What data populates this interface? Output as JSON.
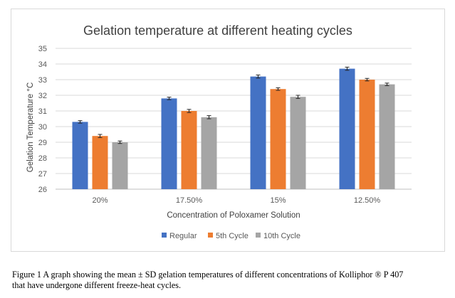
{
  "chart_data": {
    "type": "bar",
    "title": "Gelation temperature at different heating cycles",
    "xlabel": "Concentration of Poloxamer Solution",
    "ylabel": "Gelation Temperature °C",
    "categories": [
      "20%",
      "17.50%",
      "15%",
      "12.50%"
    ],
    "ylim": [
      26,
      35
    ],
    "yticks": [
      "26",
      "27",
      "28",
      "29",
      "30",
      "31",
      "32",
      "33",
      "34",
      "35"
    ],
    "grid": true,
    "legend_position": "bottom",
    "error_bars": true,
    "series": [
      {
        "name": "Regular",
        "color": "#4472c4",
        "values": [
          30.3,
          31.8,
          33.2,
          33.7
        ],
        "errors": [
          0.08,
          0.08,
          0.1,
          0.1
        ]
      },
      {
        "name": "5th Cycle",
        "color": "#ed7d31",
        "values": [
          29.4,
          31.0,
          32.4,
          33.0
        ],
        "errors": [
          0.1,
          0.1,
          0.08,
          0.08
        ]
      },
      {
        "name": "10th Cycle",
        "color": "#a5a5a5",
        "values": [
          29.0,
          30.6,
          31.9,
          32.7
        ],
        "errors": [
          0.08,
          0.1,
          0.1,
          0.08
        ]
      }
    ]
  },
  "caption": {
    "line1": "Figure 1 A graph showing the mean ± SD gelation temperatures of different concentrations of Kolliphor ® P 407",
    "line2": "that have undergone different freeze-heat cycles."
  }
}
